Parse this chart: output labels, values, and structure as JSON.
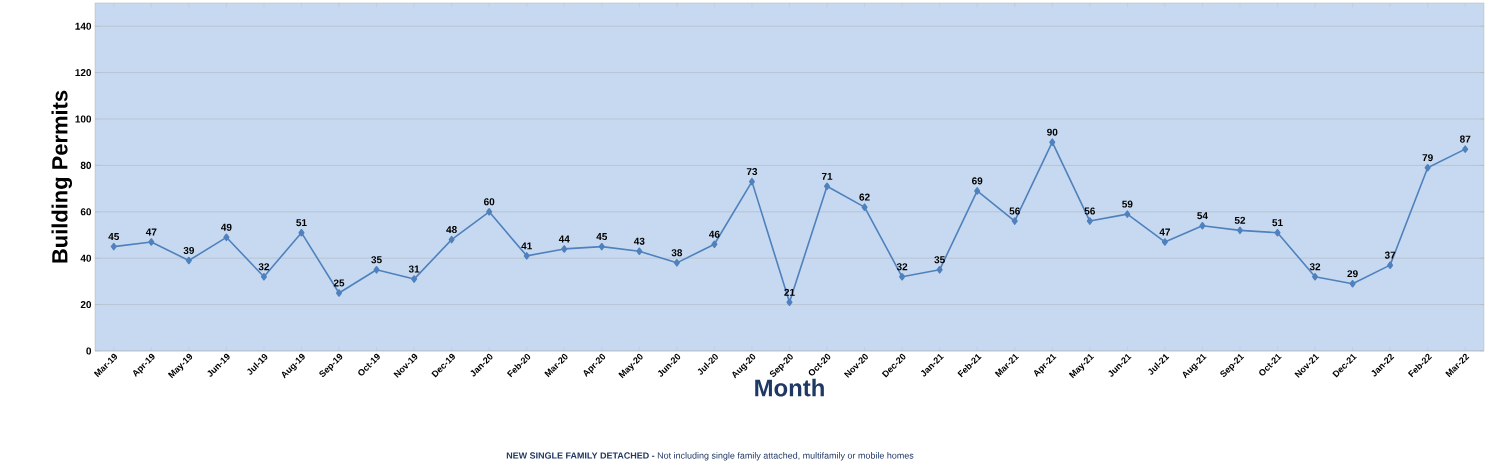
{
  "chart_data": {
    "type": "line",
    "xlabel": "Month",
    "ylabel": "Building Permits",
    "annotations": [
      "**NEW SINGLE FAMILY DETACHED -** Not including single family attached, multifamily or mobile homes"
    ],
    "categories": [
      "Mar-19",
      "Apr-19",
      "May-19",
      "Jun-19",
      "Jul-19",
      "Aug-19",
      "Sep-19",
      "Oct-19",
      "Nov-19",
      "Dec-19",
      "Jan-20",
      "Feb-20",
      "Mar-20",
      "Apr-20",
      "May-20",
      "Jun-20",
      "Jul-20",
      "Aug-20",
      "Sep-20",
      "Oct-20",
      "Nov-20",
      "Dec-20",
      "Jan-21",
      "Feb-21",
      "Mar-21",
      "Apr-21",
      "May-21",
      "Jun-21",
      "Jul-21",
      "Aug-21",
      "Sep-21",
      "Oct-21",
      "Nov-21",
      "Dec-21",
      "Jan-22",
      "Feb-22",
      "Mar-22"
    ],
    "values": [
      45,
      47,
      39,
      49,
      32,
      51,
      25,
      35,
      31,
      48,
      60,
      41,
      44,
      45,
      43,
      38,
      46,
      73,
      21,
      71,
      62,
      32,
      35,
      69,
      56,
      90,
      56,
      59,
      47,
      54,
      52,
      51,
      32,
      29,
      37,
      79,
      87
    ],
    "color": "#4f81bd",
    "marker": "diamond",
    "line_style": "solid",
    "data_labels": true,
    "grid": "y",
    "ylim": [
      0,
      150
    ],
    "yticks": [
      0,
      20,
      40,
      60,
      80,
      100,
      120,
      140
    ]
  }
}
